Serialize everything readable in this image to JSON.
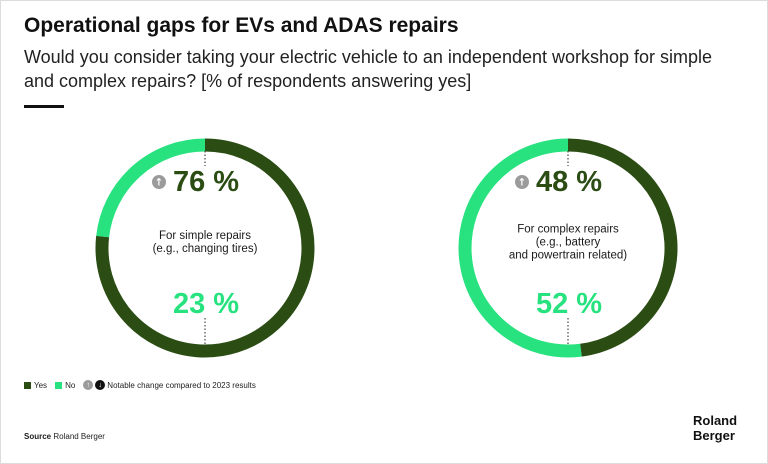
{
  "header": {
    "title": "Operational gaps for EVs and ADAS repairs",
    "subtitle": "Would you consider taking your electric vehicle to an independent workshop for simple and complex repairs? [% of respondents answering yes]"
  },
  "colors": {
    "yes": "#2b4d14",
    "no": "#27e27f",
    "up_circle": "#9b9b9b",
    "down_circle": "#111111"
  },
  "chart_data": [
    {
      "type": "pie",
      "categories": [
        "Yes",
        "No"
      ],
      "values": [
        76,
        23
      ],
      "labels": [
        "76 %",
        "23 %"
      ],
      "center_lines": [
        "For simple repairs",
        "(e.g., changing tires)"
      ],
      "notable_change": "up-arrow-icon"
    },
    {
      "type": "pie",
      "categories": [
        "Yes",
        "No"
      ],
      "values": [
        48,
        52
      ],
      "labels": [
        "48 %",
        "52 %"
      ],
      "center_lines": [
        "For complex repairs",
        "(e.g., battery",
        "and powertrain related)"
      ],
      "notable_change": "up-arrow-icon"
    }
  ],
  "legend": {
    "yes_label": "Yes",
    "no_label": "No",
    "up_symbol": "↑",
    "down_symbol": "↓",
    "note": "Notable change compared to 2023 results"
  },
  "footer": {
    "source_label": "Source",
    "source_text": "Roland Berger",
    "logo_line1": "Roland",
    "logo_line2": "Berger"
  }
}
